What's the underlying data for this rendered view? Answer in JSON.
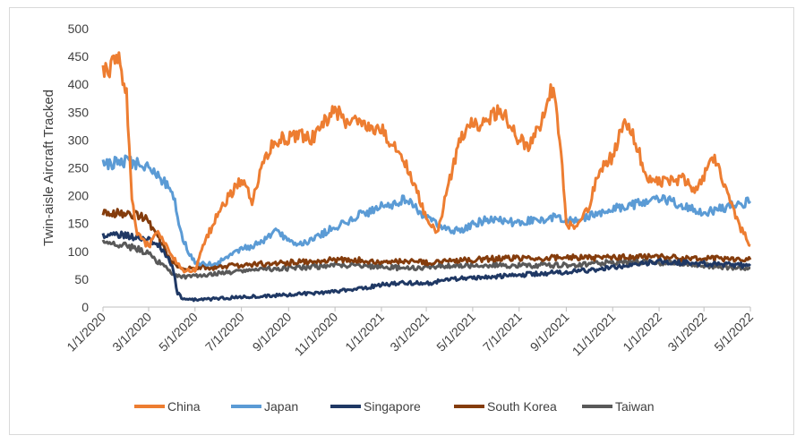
{
  "chart_data": {
    "type": "line",
    "title": "",
    "xlabel": "",
    "ylabel": "Twin-aisle Aircraft Tracked",
    "ylim": [
      0,
      500
    ],
    "yticks": [
      0,
      50,
      100,
      150,
      200,
      250,
      300,
      350,
      400,
      450,
      500
    ],
    "xlim": [
      "2020-01-01",
      "2022-05-01"
    ],
    "xticks": [
      "1/1/2020",
      "3/1/2020",
      "5/1/2020",
      "7/1/2020",
      "9/1/2020",
      "11/1/2020",
      "1/1/2021",
      "3/1/2021",
      "5/1/2021",
      "7/1/2021",
      "9/1/2021",
      "11/1/2021",
      "1/1/2022",
      "3/1/2022",
      "5/1/2022"
    ],
    "grid": false,
    "legend": "bottom",
    "series": [
      {
        "name": "China",
        "color": "#ED7D31",
        "x": [
          "2020-01-01",
          "2020-01-15",
          "2020-01-22",
          "2020-02-01",
          "2020-02-08",
          "2020-02-15",
          "2020-03-01",
          "2020-03-15",
          "2020-04-01",
          "2020-04-15",
          "2020-05-01",
          "2020-05-15",
          "2020-06-01",
          "2020-06-15",
          "2020-07-01",
          "2020-07-15",
          "2020-08-01",
          "2020-08-15",
          "2020-09-01",
          "2020-09-15",
          "2020-10-01",
          "2020-10-15",
          "2020-11-01",
          "2020-11-15",
          "2020-12-01",
          "2020-12-15",
          "2021-01-01",
          "2021-01-15",
          "2021-02-01",
          "2021-02-15",
          "2021-03-01",
          "2021-03-15",
          "2021-04-01",
          "2021-04-15",
          "2021-05-01",
          "2021-05-15",
          "2021-06-01",
          "2021-06-15",
          "2021-07-01",
          "2021-07-15",
          "2021-08-01",
          "2021-08-15",
          "2021-08-25",
          "2021-09-01",
          "2021-09-15",
          "2021-10-01",
          "2021-10-15",
          "2021-11-01",
          "2021-11-15",
          "2021-12-01",
          "2021-12-15",
          "2022-01-01",
          "2022-01-15",
          "2022-02-01",
          "2022-02-15",
          "2022-03-01",
          "2022-03-15",
          "2022-04-01",
          "2022-04-15",
          "2022-05-01"
        ],
        "values": [
          420,
          435,
          440,
          380,
          200,
          130,
          110,
          135,
          90,
          65,
          65,
          120,
          170,
          200,
          230,
          190,
          270,
          300,
          305,
          310,
          300,
          330,
          355,
          335,
          330,
          320,
          320,
          295,
          260,
          215,
          160,
          130,
          230,
          300,
          330,
          330,
          350,
          340,
          300,
          290,
          340,
          400,
          280,
          150,
          140,
          180,
          250,
          270,
          330,
          300,
          230,
          225,
          225,
          230,
          210,
          235,
          270,
          200,
          150,
          110
        ]
      },
      {
        "name": "Japan",
        "color": "#5B9BD5",
        "x": [
          "2020-01-01",
          "2020-01-15",
          "2020-02-01",
          "2020-02-15",
          "2020-03-01",
          "2020-03-15",
          "2020-04-01",
          "2020-04-15",
          "2020-05-01",
          "2020-05-15",
          "2020-06-01",
          "2020-06-15",
          "2020-07-01",
          "2020-07-15",
          "2020-08-01",
          "2020-08-15",
          "2020-09-01",
          "2020-09-15",
          "2020-10-01",
          "2020-10-15",
          "2020-11-01",
          "2020-11-15",
          "2020-12-01",
          "2020-12-15",
          "2021-01-01",
          "2021-01-15",
          "2021-02-01",
          "2021-02-15",
          "2021-03-01",
          "2021-03-15",
          "2021-04-01",
          "2021-04-15",
          "2021-05-01",
          "2021-05-15",
          "2021-06-01",
          "2021-06-15",
          "2021-07-01",
          "2021-07-15",
          "2021-08-01",
          "2021-08-15",
          "2021-09-01",
          "2021-09-15",
          "2021-10-01",
          "2021-10-15",
          "2021-11-01",
          "2021-11-15",
          "2021-12-01",
          "2021-12-15",
          "2022-01-01",
          "2022-01-15",
          "2022-02-01",
          "2022-02-15",
          "2022-03-01",
          "2022-03-15",
          "2022-04-01",
          "2022-04-15",
          "2022-05-01"
        ],
        "values": [
          255,
          258,
          262,
          258,
          250,
          235,
          210,
          120,
          80,
          75,
          80,
          90,
          105,
          110,
          120,
          135,
          120,
          115,
          120,
          130,
          145,
          150,
          165,
          170,
          180,
          185,
          195,
          180,
          160,
          150,
          140,
          135,
          150,
          155,
          160,
          155,
          150,
          155,
          155,
          160,
          160,
          155,
          165,
          170,
          175,
          180,
          185,
          190,
          195,
          190,
          180,
          175,
          170,
          175,
          180,
          185,
          190
        ]
      },
      {
        "name": "Singapore",
        "color": "#1F3864",
        "x": [
          "2020-01-01",
          "2020-01-15",
          "2020-02-01",
          "2020-02-15",
          "2020-03-01",
          "2020-03-15",
          "2020-04-01",
          "2020-04-08",
          "2020-04-15",
          "2020-05-01",
          "2020-05-15",
          "2020-06-01",
          "2020-07-01",
          "2020-08-01",
          "2020-09-01",
          "2020-10-01",
          "2020-11-01",
          "2020-12-01",
          "2021-01-01",
          "2021-02-01",
          "2021-03-01",
          "2021-04-01",
          "2021-05-01",
          "2021-06-01",
          "2021-07-01",
          "2021-08-01",
          "2021-09-01",
          "2021-10-01",
          "2021-11-01",
          "2021-12-01",
          "2022-01-01",
          "2022-02-01",
          "2022-03-01",
          "2022-04-01",
          "2022-05-01"
        ],
        "values": [
          128,
          130,
          128,
          125,
          120,
          110,
          75,
          25,
          15,
          13,
          14,
          15,
          18,
          20,
          22,
          25,
          28,
          32,
          40,
          44,
          42,
          50,
          52,
          55,
          58,
          60,
          63,
          66,
          70,
          78,
          82,
          80,
          78,
          76,
          74
        ]
      },
      {
        "name": "South Korea",
        "color": "#843C0C",
        "x": [
          "2020-01-01",
          "2020-01-15",
          "2020-02-01",
          "2020-02-15",
          "2020-03-01",
          "2020-03-15",
          "2020-04-01",
          "2020-04-15",
          "2020-05-01",
          "2020-06-01",
          "2020-07-01",
          "2020-08-01",
          "2020-09-01",
          "2020-10-01",
          "2020-11-01",
          "2020-12-01",
          "2021-01-01",
          "2021-02-01",
          "2021-03-01",
          "2021-04-01",
          "2021-05-01",
          "2021-06-01",
          "2021-07-01",
          "2021-08-01",
          "2021-09-01",
          "2021-10-01",
          "2021-11-01",
          "2021-12-01",
          "2022-01-01",
          "2022-02-01",
          "2022-03-01",
          "2022-04-01",
          "2022-05-01"
        ],
        "values": [
          170,
          170,
          165,
          165,
          155,
          120,
          80,
          70,
          70,
          72,
          75,
          78,
          80,
          82,
          85,
          85,
          80,
          82,
          80,
          83,
          85,
          87,
          88,
          88,
          90,
          88,
          90,
          90,
          90,
          88,
          88,
          86,
          85
        ]
      },
      {
        "name": "Taiwan",
        "color": "#595959",
        "x": [
          "2020-01-01",
          "2020-01-15",
          "2020-02-01",
          "2020-02-15",
          "2020-03-01",
          "2020-03-15",
          "2020-04-01",
          "2020-04-15",
          "2020-05-01",
          "2020-06-01",
          "2020-07-01",
          "2020-08-01",
          "2020-09-01",
          "2020-10-01",
          "2020-11-01",
          "2020-12-01",
          "2021-01-01",
          "2021-02-01",
          "2021-03-01",
          "2021-04-01",
          "2021-05-01",
          "2021-06-01",
          "2021-07-01",
          "2021-08-01",
          "2021-09-01",
          "2021-10-01",
          "2021-11-01",
          "2021-12-01",
          "2022-01-01",
          "2022-02-01",
          "2022-03-01",
          "2022-04-01",
          "2022-05-01"
        ],
        "values": [
          115,
          115,
          110,
          105,
          95,
          80,
          60,
          55,
          55,
          60,
          65,
          68,
          70,
          72,
          75,
          75,
          72,
          70,
          72,
          74,
          75,
          75,
          75,
          75,
          75,
          78,
          80,
          82,
          80,
          78,
          75,
          72,
          70
        ]
      }
    ]
  }
}
